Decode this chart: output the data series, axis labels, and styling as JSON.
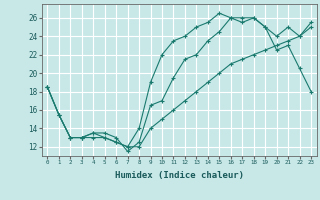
{
  "title": "",
  "xlabel": "Humidex (Indice chaleur)",
  "ylabel": "",
  "background_color": "#c8e8e8",
  "line_color": "#1a7a6e",
  "grid_color": "#ffffff",
  "xlim": [
    -0.5,
    23.5
  ],
  "ylim": [
    11.0,
    27.5
  ],
  "xticks": [
    0,
    1,
    2,
    3,
    4,
    5,
    6,
    7,
    8,
    9,
    10,
    11,
    12,
    13,
    14,
    15,
    16,
    17,
    18,
    19,
    20,
    21,
    22,
    23
  ],
  "yticks": [
    12,
    14,
    16,
    18,
    20,
    22,
    24,
    26
  ],
  "line1_x": [
    0,
    1,
    2,
    3,
    4,
    5,
    6,
    7,
    8,
    9,
    10,
    11,
    12,
    13,
    14,
    15,
    16,
    17,
    18,
    19,
    20,
    21,
    22,
    23
  ],
  "line1_y": [
    18.5,
    15.5,
    13,
    13,
    13,
    13,
    12.5,
    12,
    12,
    14,
    15,
    16,
    17,
    18,
    19,
    20,
    21,
    21.5,
    22,
    22.5,
    23,
    23.5,
    24,
    25
  ],
  "line2_x": [
    0,
    1,
    2,
    3,
    4,
    5,
    6,
    7,
    8,
    9,
    10,
    11,
    12,
    13,
    14,
    15,
    16,
    17,
    18,
    19,
    20,
    21,
    22,
    23
  ],
  "line2_y": [
    18.5,
    15.5,
    13,
    13,
    13.5,
    13.5,
    13,
    11.5,
    12.5,
    16.5,
    17,
    19.5,
    21.5,
    22,
    23.5,
    24.5,
    26,
    25.5,
    26,
    25,
    24,
    25,
    24,
    25.5
  ],
  "line3_x": [
    0,
    1,
    2,
    3,
    4,
    5,
    6,
    7,
    8,
    9,
    10,
    11,
    12,
    13,
    14,
    15,
    16,
    17,
    18,
    19,
    20,
    21,
    22,
    23
  ],
  "line3_y": [
    18.5,
    15.5,
    13,
    13,
    13.5,
    13,
    12.5,
    12,
    14,
    19,
    22,
    23.5,
    24,
    25,
    25.5,
    26.5,
    26,
    26,
    26,
    25,
    22.5,
    23,
    20.5,
    18
  ]
}
